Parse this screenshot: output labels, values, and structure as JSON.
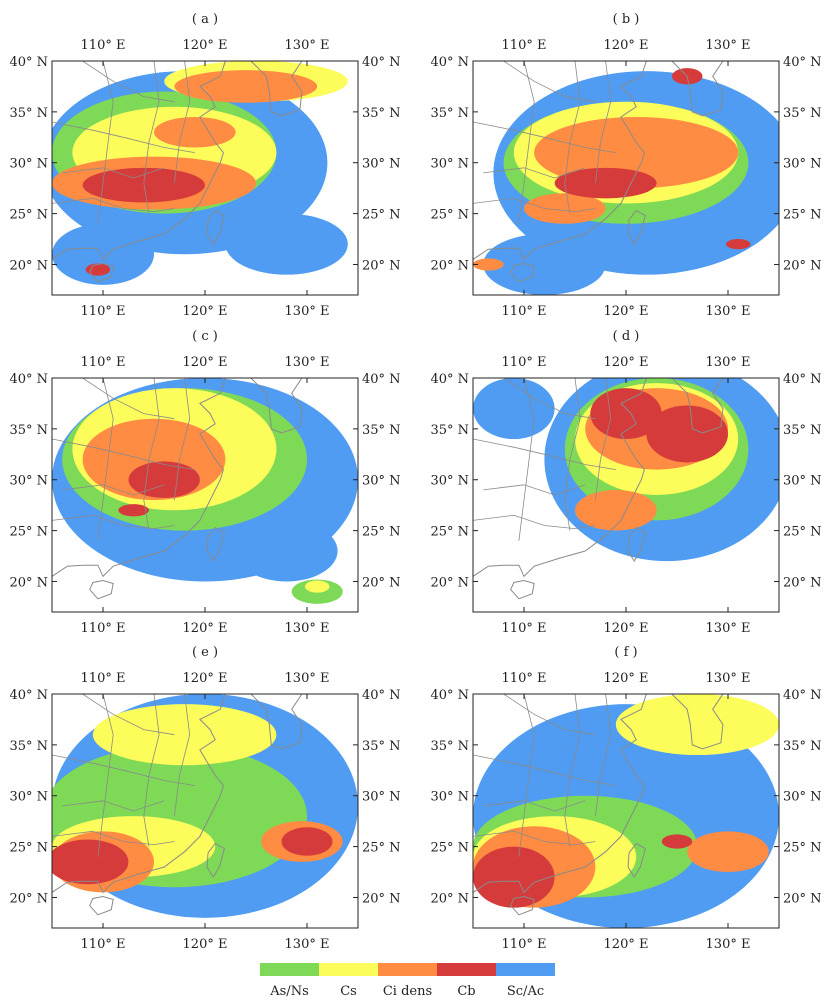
{
  "colors": {
    "As/Ns": "#7ed957",
    "Cs": "#fcfc5a",
    "Ci dens": "#ff8c42",
    "Cb": "#d63b3b",
    "Sc/Ac": "#4f9cf2",
    "border": "#8a8a8a",
    "frame": "#222222"
  },
  "axes": {
    "lon_ticks": [
      "110° E",
      "120° E",
      "130° E"
    ],
    "lat_ticks": [
      "40° N",
      "35° N",
      "30° N",
      "25° N",
      "20° N"
    ],
    "lon_values": [
      110,
      120,
      130
    ],
    "lat_values": [
      40,
      35,
      30,
      25,
      20
    ],
    "lon_range": [
      105,
      135
    ],
    "lat_range": [
      17,
      40
    ]
  },
  "panels": [
    {
      "label": "( a )",
      "blobs": [
        {
          "c": "Sc/Ac",
          "lon": 118,
          "lat": 30,
          "rx": 14,
          "ry": 9
        },
        {
          "c": "Sc/Ac",
          "lon": 128,
          "lat": 22,
          "rx": 6,
          "ry": 3
        },
        {
          "c": "Sc/Ac",
          "lon": 110,
          "lat": 21,
          "rx": 5,
          "ry": 3
        },
        {
          "c": "As/Ns",
          "lon": 116,
          "lat": 31,
          "rx": 11,
          "ry": 6
        },
        {
          "c": "Cs",
          "lon": 117,
          "lat": 31,
          "rx": 10,
          "ry": 4.5
        },
        {
          "c": "Cs",
          "lon": 125,
          "lat": 38,
          "rx": 9,
          "ry": 2
        },
        {
          "c": "Ci dens",
          "lon": 115,
          "lat": 28,
          "rx": 10,
          "ry": 2.6
        },
        {
          "c": "Ci dens",
          "lon": 124,
          "lat": 37.5,
          "rx": 7,
          "ry": 1.6
        },
        {
          "c": "Ci dens",
          "lon": 119,
          "lat": 33,
          "rx": 4,
          "ry": 1.5
        },
        {
          "c": "Cb",
          "lon": 114,
          "lat": 27.8,
          "rx": 6,
          "ry": 1.7
        },
        {
          "c": "Cb",
          "lon": 109.5,
          "lat": 19.5,
          "rx": 1.2,
          "ry": 0.6
        }
      ]
    },
    {
      "label": "( b )",
      "blobs": [
        {
          "c": "Sc/Ac",
          "lon": 122,
          "lat": 29,
          "rx": 15,
          "ry": 10
        },
        {
          "c": "Sc/Ac",
          "lon": 112,
          "lat": 20,
          "rx": 6,
          "ry": 3
        },
        {
          "c": "As/Ns",
          "lon": 120,
          "lat": 30,
          "rx": 12,
          "ry": 6
        },
        {
          "c": "Cs",
          "lon": 120,
          "lat": 31,
          "rx": 11,
          "ry": 5
        },
        {
          "c": "Ci dens",
          "lon": 121,
          "lat": 31,
          "rx": 10,
          "ry": 3.5
        },
        {
          "c": "Ci dens",
          "lon": 114,
          "lat": 25.5,
          "rx": 4,
          "ry": 1.5
        },
        {
          "c": "Cb",
          "lon": 118,
          "lat": 28,
          "rx": 5,
          "ry": 1.5
        },
        {
          "c": "Cb",
          "lon": 126,
          "lat": 38.5,
          "rx": 1.5,
          "ry": 0.8
        },
        {
          "c": "Cb",
          "lon": 131,
          "lat": 22,
          "rx": 1.2,
          "ry": 0.5
        },
        {
          "c": "Ci dens",
          "lon": 106.5,
          "lat": 20,
          "rx": 1.5,
          "ry": 0.6
        }
      ]
    },
    {
      "label": "( c )",
      "blobs": [
        {
          "c": "Sc/Ac",
          "lon": 120,
          "lat": 30,
          "rx": 15,
          "ry": 10
        },
        {
          "c": "Sc/Ac",
          "lon": 128,
          "lat": 23,
          "rx": 5,
          "ry": 3
        },
        {
          "c": "As/Ns",
          "lon": 118,
          "lat": 32,
          "rx": 12,
          "ry": 7
        },
        {
          "c": "Cs",
          "lon": 117,
          "lat": 33,
          "rx": 10,
          "ry": 6
        },
        {
          "c": "Ci dens",
          "lon": 115,
          "lat": 32,
          "rx": 7,
          "ry": 4
        },
        {
          "c": "Cb",
          "lon": 116,
          "lat": 30,
          "rx": 3.5,
          "ry": 1.8
        },
        {
          "c": "Cb",
          "lon": 113,
          "lat": 27,
          "rx": 1.5,
          "ry": 0.6
        },
        {
          "c": "As/Ns",
          "lon": 131,
          "lat": 19,
          "rx": 2.5,
          "ry": 1.2
        },
        {
          "c": "Cs",
          "lon": 131,
          "lat": 19.5,
          "rx": 1.2,
          "ry": 0.6
        }
      ]
    },
    {
      "label": "( d )",
      "blobs": [
        {
          "c": "Sc/Ac",
          "lon": 124,
          "lat": 32,
          "rx": 12,
          "ry": 10
        },
        {
          "c": "Sc/Ac",
          "lon": 109,
          "lat": 37,
          "rx": 4,
          "ry": 3
        },
        {
          "c": "As/Ns",
          "lon": 123,
          "lat": 33,
          "rx": 9,
          "ry": 7
        },
        {
          "c": "Cs",
          "lon": 123,
          "lat": 34,
          "rx": 8,
          "ry": 5.5
        },
        {
          "c": "Ci dens",
          "lon": 123,
          "lat": 35,
          "rx": 7,
          "ry": 4
        },
        {
          "c": "Ci dens",
          "lon": 119,
          "lat": 27,
          "rx": 4,
          "ry": 2
        },
        {
          "c": "Cb",
          "lon": 120,
          "lat": 36.5,
          "rx": 3.5,
          "ry": 2.5
        },
        {
          "c": "Cb",
          "lon": 126,
          "lat": 34.5,
          "rx": 4,
          "ry": 2.8
        }
      ]
    },
    {
      "label": "( e )",
      "blobs": [
        {
          "c": "Sc/Ac",
          "lon": 120,
          "lat": 29,
          "rx": 15,
          "ry": 11
        },
        {
          "c": "As/Ns",
          "lon": 117,
          "lat": 28,
          "rx": 13,
          "ry": 7
        },
        {
          "c": "Cs",
          "lon": 118,
          "lat": 36,
          "rx": 9,
          "ry": 3
        },
        {
          "c": "Cs",
          "lon": 113,
          "lat": 25,
          "rx": 8,
          "ry": 3
        },
        {
          "c": "Ci dens",
          "lon": 110,
          "lat": 23.5,
          "rx": 5,
          "ry": 3
        },
        {
          "c": "Ci dens",
          "lon": 129.5,
          "lat": 25.5,
          "rx": 4,
          "ry": 2
        },
        {
          "c": "Cb",
          "lon": 108.5,
          "lat": 23.5,
          "rx": 4,
          "ry": 2.2
        },
        {
          "c": "Cb",
          "lon": 130,
          "lat": 25.5,
          "rx": 2.5,
          "ry": 1.4
        }
      ]
    },
    {
      "label": "( f )",
      "blobs": [
        {
          "c": "Sc/Ac",
          "lon": 120,
          "lat": 28,
          "rx": 15,
          "ry": 11
        },
        {
          "c": "As/Ns",
          "lon": 116,
          "lat": 25,
          "rx": 11,
          "ry": 5
        },
        {
          "c": "Cs",
          "lon": 127,
          "lat": 37,
          "rx": 8,
          "ry": 3
        },
        {
          "c": "Cs",
          "lon": 113,
          "lat": 24,
          "rx": 8,
          "ry": 4
        },
        {
          "c": "Ci dens",
          "lon": 111,
          "lat": 23,
          "rx": 6,
          "ry": 4
        },
        {
          "c": "Ci dens",
          "lon": 130,
          "lat": 24.5,
          "rx": 4,
          "ry": 2
        },
        {
          "c": "Cb",
          "lon": 109,
          "lat": 22,
          "rx": 4,
          "ry": 3
        },
        {
          "c": "Cb",
          "lon": 125,
          "lat": 25.5,
          "rx": 1.5,
          "ry": 0.7
        }
      ]
    }
  ],
  "legend": {
    "items": [
      {
        "label": "As/Ns",
        "key": "As/Ns"
      },
      {
        "label": "Cs",
        "key": "Cs"
      },
      {
        "label": "Ci dens",
        "key": "Ci dens"
      },
      {
        "label": "Cb",
        "key": "Cb"
      },
      {
        "label": "Sc/Ac",
        "key": "Sc/Ac"
      }
    ]
  }
}
